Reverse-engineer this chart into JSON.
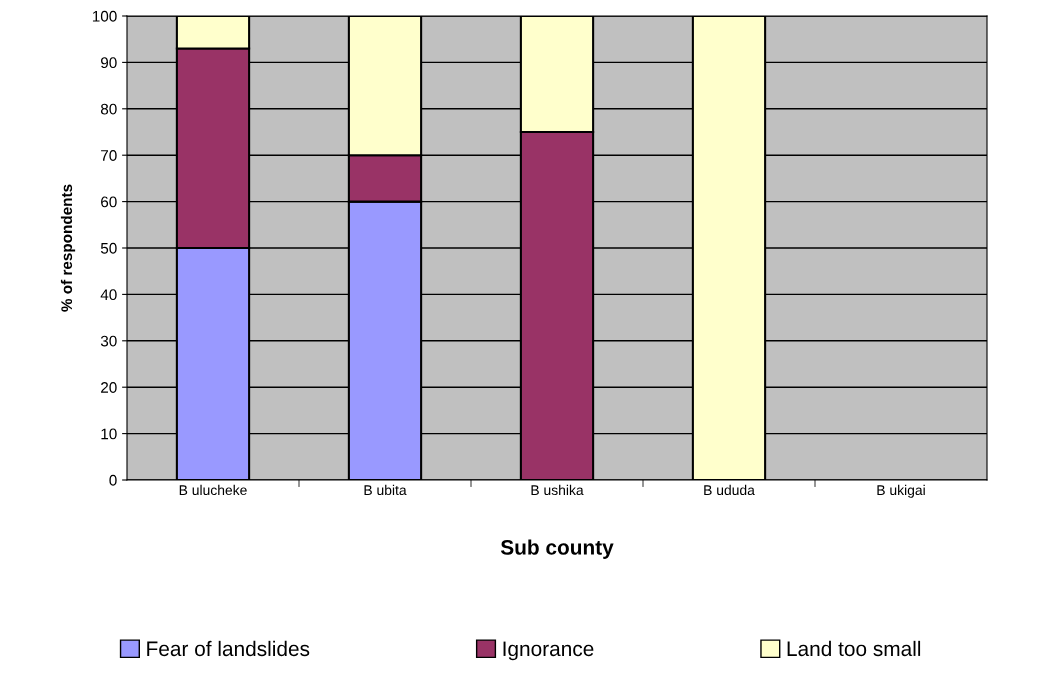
{
  "chart_data": {
    "type": "bar",
    "stacked": true,
    "xlabel": "Sub county",
    "ylabel": "% of respondents",
    "categories": [
      "B ulucheke",
      "B ubita",
      "B ushika",
      "B ududa",
      "B ukigai"
    ],
    "series": [
      {
        "name": "Fear of landslides",
        "color": "#9999ff",
        "values": [
          50,
          60,
          0,
          0,
          null
        ]
      },
      {
        "name": "Ignorance",
        "color": "#993366",
        "values": [
          43,
          10,
          75,
          0,
          null
        ]
      },
      {
        "name": "Land too small",
        "color": "#ffffcc",
        "values": [
          7,
          30,
          25,
          100,
          null
        ]
      }
    ],
    "ylim": [
      0,
      100
    ],
    "yticks": [
      0,
      10,
      20,
      30,
      40,
      50,
      60,
      70,
      80,
      90,
      100
    ],
    "grid": "y",
    "legend": "bottom"
  }
}
